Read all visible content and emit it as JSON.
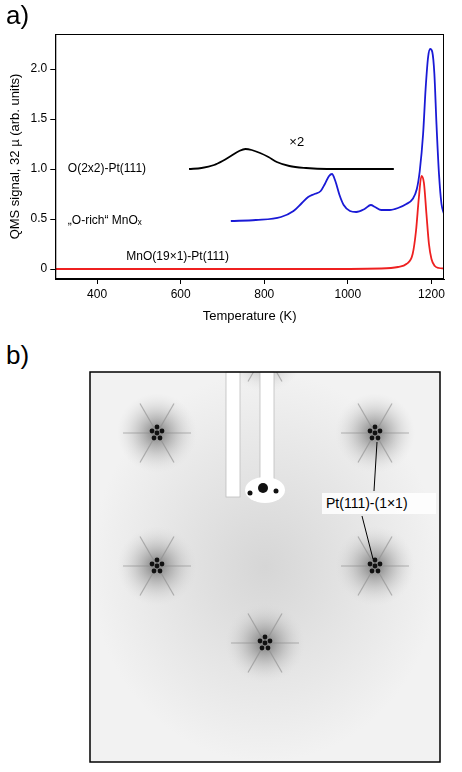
{
  "chart_data": {
    "type": "line",
    "panel_label": "a)",
    "x_label": "Temperature (K)",
    "y_label": "QMS signal, 32 µ (arb. units)",
    "xlim": [
      300,
      1230
    ],
    "xticks": [
      400,
      600,
      800,
      1000,
      1200
    ],
    "ylim": [
      -0.1,
      2.35
    ],
    "yticks": [
      0,
      0.5,
      {
        "value": 1,
        "label": "1.0"
      },
      1.5,
      {
        "value": 2,
        "label": "2.0"
      }
    ],
    "grid": false,
    "series": [
      {
        "name": "O(2x2)-Pt(111)",
        "color": "#000000",
        "label_at": [
          330,
          1.0
        ],
        "x": [
          620,
          650,
          680,
          700,
          720,
          740,
          755,
          770,
          790,
          810,
          830,
          860,
          900,
          950,
          1000,
          1110
        ],
        "values": [
          1.0,
          1.01,
          1.04,
          1.08,
          1.13,
          1.18,
          1.2,
          1.19,
          1.16,
          1.12,
          1.07,
          1.03,
          1.01,
          1.0,
          1.0,
          1.0
        ]
      },
      {
        "name": "„O-rich“ MnOₓ",
        "color": "#1a1ad6",
        "label_at": [
          330,
          0.48
        ],
        "x": [
          720,
          780,
          840,
          870,
          890,
          905,
          920,
          935,
          945,
          955,
          962,
          970,
          980,
          990,
          1005,
          1020,
          1040,
          1055,
          1065,
          1080,
          1100,
          1120,
          1140,
          1155,
          1165,
          1172,
          1180,
          1186,
          1192,
          1197,
          1202,
          1207,
          1212,
          1218,
          1224,
          1230
        ],
        "values": [
          0.48,
          0.49,
          0.52,
          0.58,
          0.66,
          0.72,
          0.75,
          0.78,
          0.85,
          0.93,
          0.95,
          0.88,
          0.74,
          0.64,
          0.58,
          0.57,
          0.6,
          0.64,
          0.62,
          0.59,
          0.59,
          0.61,
          0.65,
          0.7,
          0.8,
          0.98,
          1.35,
          1.8,
          2.12,
          2.2,
          2.17,
          1.95,
          1.45,
          0.95,
          0.65,
          0.55
        ]
      },
      {
        "name": "MnO(19×1)-Pt(111)",
        "color": "#ee2020",
        "label_at": [
          470,
          0.12
        ],
        "x": [
          300,
          600,
          900,
          1080,
          1120,
          1140,
          1155,
          1163,
          1170,
          1176,
          1182,
          1188,
          1194,
          1200,
          1208,
          1218,
          1230
        ],
        "values": [
          0,
          0,
          0,
          0.005,
          0.02,
          0.05,
          0.15,
          0.38,
          0.72,
          0.93,
          0.86,
          0.55,
          0.25,
          0.1,
          0.03,
          0.01,
          0.005
        ]
      }
    ],
    "annotations": [
      {
        "text": "×2",
        "x": 860,
        "y": 1.27
      }
    ]
  },
  "leed_image": {
    "panel_label": "b)",
    "annotation": "Pt(111)-(1×1)"
  }
}
